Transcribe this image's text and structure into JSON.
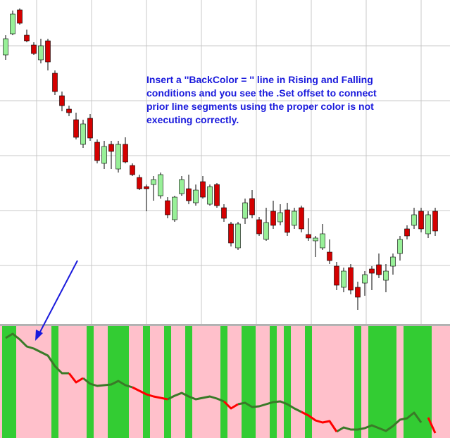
{
  "annotation": [
    "Insert a ''BackColor = '' line in Rising and Falling",
    "conditions and you see the .Set offset to connect",
    "prior line segments using the proper color is not",
    "executing correctly."
  ],
  "chart_data": [
    {
      "type": "candlestick",
      "up_color": "#98f098",
      "down_color": "#d40000",
      "grid": true,
      "ylim": [
        0,
        460
      ],
      "open": [
        382,
        412,
        446,
        410,
        396,
        375,
        402,
        356,
        324,
        305,
        290,
        255,
        292,
        258,
        228,
        255,
        220,
        255,
        225,
        208,
        195,
        198,
        182,
        175,
        148,
        185,
        192,
        172,
        202,
        170,
        198,
        165,
        142,
        108,
        150,
        178,
        148,
        120,
        160,
        145,
        162,
        140,
        165,
        127,
        118,
        108,
        102,
        82,
        52,
        80,
        52,
        58,
        78,
        84,
        62,
        82,
        100,
        135,
        140,
        160,
        128,
        160
      ],
      "high": [
        410,
        445,
        448,
        418,
        400,
        405,
        405,
        360,
        330,
        310,
        300,
        290,
        298,
        262,
        260,
        260,
        260,
        265,
        228,
        212,
        198,
        210,
        215,
        180,
        182,
        210,
        212,
        198,
        210,
        198,
        200,
        170,
        145,
        145,
        178,
        190,
        152,
        165,
        175,
        170,
        172,
        165,
        168,
        150,
        125,
        142,
        120,
        88,
        80,
        85,
        60,
        75,
        82,
        100,
        85,
        100,
        125,
        140,
        165,
        165,
        160,
        165
      ],
      "low": [
        375,
        410,
        425,
        400,
        382,
        370,
        360,
        325,
        302,
        295,
        262,
        250,
        260,
        228,
        220,
        220,
        215,
        228,
        210,
        190,
        160,
        175,
        178,
        150,
        145,
        182,
        170,
        168,
        178,
        168,
        165,
        145,
        110,
        105,
        142,
        150,
        125,
        118,
        135,
        140,
        125,
        135,
        130,
        118,
        95,
        105,
        85,
        48,
        45,
        42,
        20,
        40,
        48,
        65,
        45,
        70,
        90,
        120,
        135,
        130,
        122,
        125
      ],
      "close": [
        405,
        440,
        427,
        402,
        384,
        395,
        372,
        330,
        310,
        300,
        265,
        284,
        264,
        232,
        252,
        245,
        255,
        230,
        212,
        192,
        192,
        205,
        212,
        155,
        180,
        205,
        175,
        190,
        180,
        195,
        168,
        150,
        115,
        142,
        172,
        155,
        128,
        144,
        140,
        158,
        130,
        160,
        135,
        122,
        122,
        128,
        90,
        55,
        75,
        48,
        38,
        70,
        72,
        70,
        75,
        95,
        120,
        125,
        155,
        135,
        155,
        132
      ]
    },
    {
      "type": "line",
      "ylim": [
        0,
        159
      ],
      "background_colors": [
        "#33cc33",
        "#ffc0cb"
      ],
      "rising": [
        true,
        true,
        false,
        false,
        false,
        false,
        false,
        true,
        false,
        false,
        false,
        false,
        true,
        false,
        false,
        true,
        true,
        true,
        false,
        false,
        true,
        false,
        false,
        true,
        false,
        false,
        true,
        false,
        false,
        false,
        false,
        true,
        false,
        false,
        true,
        true,
        false,
        false,
        true,
        false,
        true,
        false,
        false,
        true,
        false,
        false,
        false,
        false,
        false,
        false,
        true,
        false,
        true,
        true,
        true,
        true,
        false,
        true,
        true,
        true,
        true,
        false
      ],
      "series": [
        {
          "color": "#3a7a28",
          "values": [
            142,
            148,
            140,
            130,
            127,
            122,
            117,
            102,
            92,
            92,
            null,
            85,
            77,
            74,
            75,
            76,
            81,
            75,
            72,
            null,
            null,
            null,
            null,
            55,
            60,
            64,
            59,
            55,
            57,
            59,
            56,
            52,
            null,
            48,
            50,
            44,
            45,
            48,
            51,
            52,
            48,
            42,
            37,
            null,
            null,
            null,
            null,
            9,
            15,
            12,
            12,
            14,
            18,
            14,
            10,
            17,
            26,
            28,
            36,
            22,
            null,
            null
          ]
        },
        {
          "color": "#ff0000",
          "values": [
            null,
            null,
            null,
            null,
            null,
            null,
            null,
            null,
            null,
            92,
            79,
            85,
            null,
            null,
            null,
            null,
            null,
            null,
            72,
            67,
            62,
            59,
            57,
            55,
            null,
            null,
            null,
            null,
            null,
            null,
            null,
            52,
            42,
            48,
            null,
            null,
            null,
            null,
            null,
            null,
            null,
            null,
            37,
            32,
            25,
            22,
            24,
            9,
            null,
            null,
            null,
            null,
            null,
            null,
            null,
            null,
            null,
            null,
            null,
            null,
            29,
            7
          ]
        }
      ]
    }
  ]
}
